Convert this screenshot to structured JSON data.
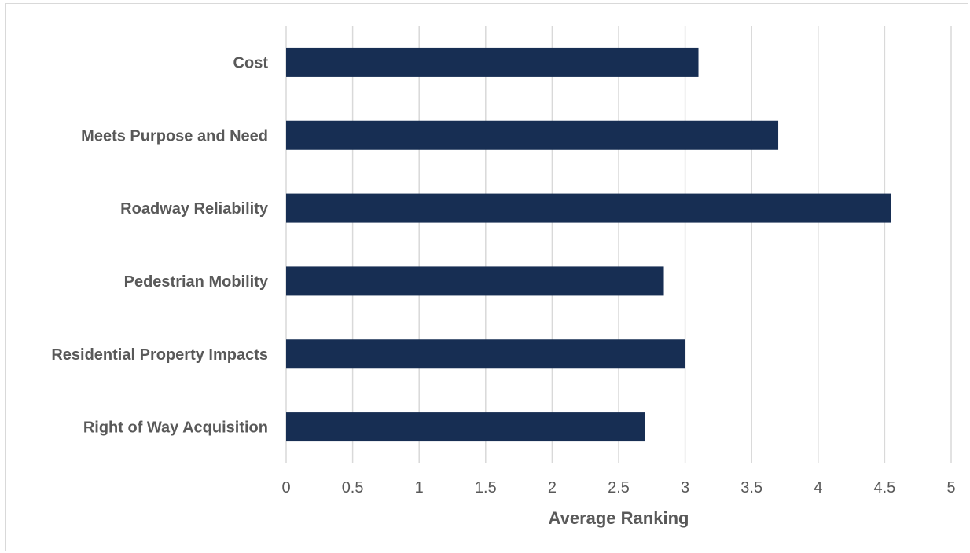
{
  "chart_data": {
    "type": "bar",
    "orientation": "horizontal",
    "categories": [
      "Cost",
      "Meets Purpose and Need",
      "Roadway Reliability",
      "Pedestrian Mobility",
      "Residential Property Impacts",
      "Right of Way Acquisition"
    ],
    "values": [
      3.1,
      3.7,
      4.55,
      2.84,
      3.0,
      2.7
    ],
    "xlabel": "Average Ranking",
    "ylabel": "",
    "title": "",
    "xlim": [
      0,
      5
    ],
    "x_ticks": [
      "0",
      "0.5",
      "1",
      "1.5",
      "2",
      "2.5",
      "3",
      "3.5",
      "4",
      "4.5",
      "5"
    ],
    "grid": "vertical",
    "legend": "none",
    "colors": {
      "bar": "#172e53",
      "grid": "#d9d9d9",
      "text": "#595959"
    }
  }
}
